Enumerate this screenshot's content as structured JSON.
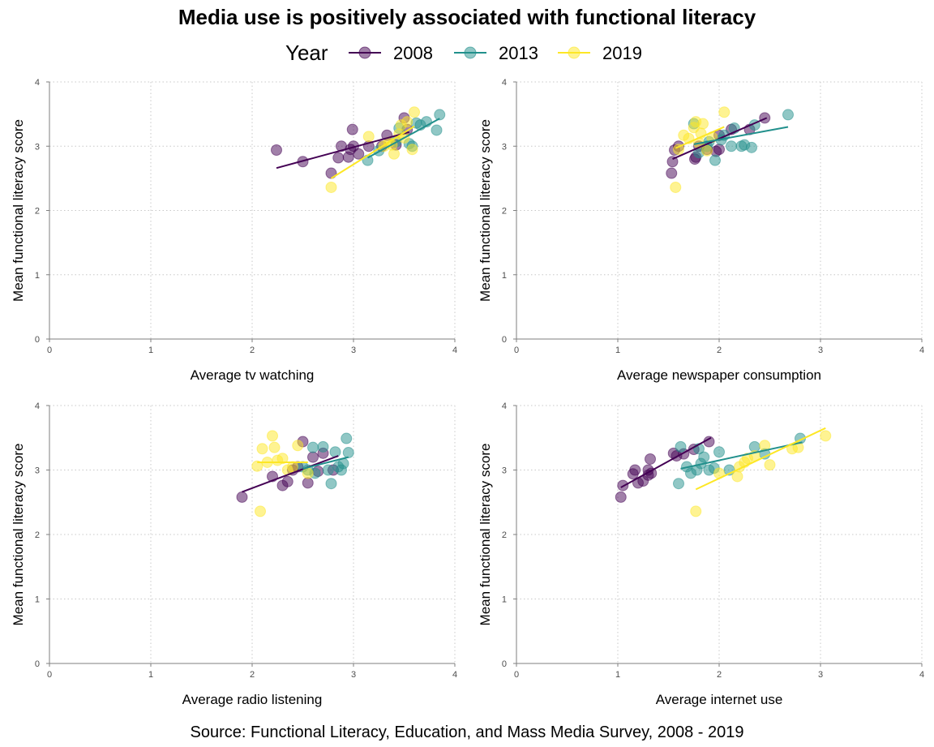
{
  "title": "Media use is positively associated with functional literacy",
  "caption": "Source: Functional Literacy, Education, and Mass Media Survey, 2008 - 2019",
  "legend": {
    "title": "Year",
    "items": [
      {
        "label": "2008",
        "color": "#440154"
      },
      {
        "label": "2013",
        "color": "#21908C"
      },
      {
        "label": "2019",
        "color": "#FDE725"
      }
    ]
  },
  "chart_data": [
    {
      "type": "scatter",
      "xlabel": "Average tv watching",
      "ylabel": "Mean functional literacy score",
      "xlim": [
        0,
        4
      ],
      "ylim": [
        0,
        4
      ],
      "xticks": [
        "0",
        "1",
        "2",
        "3",
        "4"
      ],
      "yticks": [
        "0",
        "1",
        "2",
        "3",
        "4"
      ],
      "grid": true,
      "series": [
        {
          "name": "2008",
          "color": "#440154",
          "points": [
            [
              2.24,
              2.94
            ],
            [
              2.5,
              2.76
            ],
            [
              2.78,
              2.58
            ],
            [
              2.85,
              2.82
            ],
            [
              2.88,
              3.0
            ],
            [
              2.95,
              2.83
            ],
            [
              2.97,
              2.95
            ],
            [
              2.99,
              3.26
            ],
            [
              3.0,
              3.0
            ],
            [
              3.05,
              2.88
            ],
            [
              3.15,
              3.0
            ],
            [
              3.28,
              3.0
            ],
            [
              3.33,
              3.17
            ],
            [
              3.42,
              3.02
            ],
            [
              3.5,
              3.44
            ],
            [
              3.53,
              3.26
            ]
          ],
          "fit": [
            [
              2.24,
              2.66
            ],
            [
              3.55,
              3.22
            ]
          ]
        },
        {
          "name": "2013",
          "color": "#21908C",
          "points": [
            [
              3.14,
              2.78
            ],
            [
              3.25,
              2.93
            ],
            [
              3.42,
              3.07
            ],
            [
              3.45,
              3.28
            ],
            [
              3.55,
              3.04
            ],
            [
              3.58,
              3.0
            ],
            [
              3.62,
              3.36
            ],
            [
              3.66,
              3.33
            ],
            [
              3.72,
              3.38
            ],
            [
              3.82,
              3.25
            ],
            [
              3.85,
              3.49
            ]
          ],
          "fit": [
            [
              3.14,
              2.82
            ],
            [
              3.85,
              3.43
            ]
          ]
        },
        {
          "name": "2019",
          "color": "#FDE725",
          "points": [
            [
              2.78,
              2.36
            ],
            [
              3.15,
              3.15
            ],
            [
              3.3,
              3.0
            ],
            [
              3.35,
              3.06
            ],
            [
              3.38,
              3.02
            ],
            [
              3.4,
              2.88
            ],
            [
              3.45,
              3.19
            ],
            [
              3.47,
              3.33
            ],
            [
              3.5,
              3.13
            ],
            [
              3.53,
              3.38
            ],
            [
              3.58,
              2.95
            ],
            [
              3.6,
              3.53
            ]
          ],
          "fit": [
            [
              2.78,
              2.5
            ],
            [
              3.6,
              3.31
            ]
          ]
        }
      ]
    },
    {
      "type": "scatter",
      "xlabel": "Average newspaper consumption",
      "ylabel": "Mean functional literacy score",
      "xlim": [
        0,
        4
      ],
      "ylim": [
        0,
        4
      ],
      "xticks": [
        "0",
        "1",
        "2",
        "3",
        "4"
      ],
      "yticks": [
        "0",
        "1",
        "2",
        "3",
        "4"
      ],
      "grid": true,
      "series": [
        {
          "name": "2008",
          "color": "#440154",
          "points": [
            [
              1.53,
              2.58
            ],
            [
              1.54,
              2.76
            ],
            [
              1.56,
              2.94
            ],
            [
              1.6,
              3.0
            ],
            [
              1.76,
              2.8
            ],
            [
              1.77,
              2.83
            ],
            [
              1.8,
              3.0
            ],
            [
              1.88,
              2.95
            ],
            [
              1.97,
              2.92
            ],
            [
              2.0,
              2.95
            ],
            [
              2.0,
              3.17
            ],
            [
              2.12,
              3.26
            ],
            [
              2.3,
              3.26
            ],
            [
              2.45,
              3.44
            ]
          ],
          "fit": [
            [
              1.54,
              2.8
            ],
            [
              2.47,
              3.44
            ]
          ]
        },
        {
          "name": "2013",
          "color": "#21908C",
          "points": [
            [
              1.75,
              3.35
            ],
            [
              1.8,
              2.9
            ],
            [
              1.88,
              3.0
            ],
            [
              1.9,
              3.07
            ],
            [
              1.96,
              2.78
            ],
            [
              2.02,
              3.1
            ],
            [
              2.05,
              3.17
            ],
            [
              2.12,
              3.0
            ],
            [
              2.15,
              3.28
            ],
            [
              2.22,
              3.0
            ],
            [
              2.25,
              3.02
            ],
            [
              2.32,
              2.98
            ],
            [
              2.35,
              3.33
            ],
            [
              2.68,
              3.49
            ]
          ],
          "fit": [
            [
              1.75,
              3.03
            ],
            [
              2.68,
              3.3
            ]
          ]
        },
        {
          "name": "2019",
          "color": "#FDE725",
          "points": [
            [
              1.57,
              2.36
            ],
            [
              1.6,
              2.95
            ],
            [
              1.65,
              3.17
            ],
            [
              1.7,
              3.12
            ],
            [
              1.75,
              3.29
            ],
            [
              1.77,
              3.38
            ],
            [
              1.8,
              3.05
            ],
            [
              1.82,
              3.2
            ],
            [
              1.84,
              3.35
            ],
            [
              1.88,
              2.93
            ],
            [
              1.93,
              3.14
            ],
            [
              2.05,
              3.53
            ]
          ],
          "fit": [
            [
              1.57,
              2.97
            ],
            [
              2.05,
              3.3
            ]
          ]
        }
      ]
    },
    {
      "type": "scatter",
      "xlabel": "Average radio listening",
      "ylabel": "Mean functional literacy score",
      "xlim": [
        0,
        4
      ],
      "ylim": [
        0,
        4
      ],
      "xticks": [
        "0",
        "1",
        "2",
        "3",
        "4"
      ],
      "yticks": [
        "0",
        "1",
        "2",
        "3",
        "4"
      ],
      "grid": true,
      "series": [
        {
          "name": "2008",
          "color": "#440154",
          "points": [
            [
              1.9,
              2.58
            ],
            [
              2.2,
              2.9
            ],
            [
              2.3,
              2.76
            ],
            [
              2.35,
              2.82
            ],
            [
              2.4,
              3.0
            ],
            [
              2.45,
              3.05
            ],
            [
              2.5,
              3.44
            ],
            [
              2.55,
              2.8
            ],
            [
              2.6,
              3.2
            ],
            [
              2.65,
              2.98
            ],
            [
              2.7,
              3.26
            ],
            [
              2.8,
              3.0
            ]
          ],
          "fit": [
            [
              1.9,
              2.66
            ],
            [
              2.85,
              3.22
            ]
          ]
        },
        {
          "name": "2013",
          "color": "#21908C",
          "points": [
            [
              2.5,
              3.05
            ],
            [
              2.55,
              3.0
            ],
            [
              2.6,
              3.35
            ],
            [
              2.62,
              2.95
            ],
            [
              2.7,
              3.36
            ],
            [
              2.75,
              3.0
            ],
            [
              2.78,
              2.79
            ],
            [
              2.82,
              3.28
            ],
            [
              2.85,
              3.05
            ],
            [
              2.88,
              3.0
            ],
            [
              2.9,
              3.1
            ],
            [
              2.93,
              3.49
            ],
            [
              2.95,
              3.27
            ]
          ],
          "fit": [
            [
              2.5,
              3.02
            ],
            [
              2.95,
              3.2
            ]
          ]
        },
        {
          "name": "2019",
          "color": "#FDE725",
          "points": [
            [
              2.05,
              3.06
            ],
            [
              2.08,
              2.36
            ],
            [
              2.1,
              3.33
            ],
            [
              2.15,
              3.12
            ],
            [
              2.2,
              3.53
            ],
            [
              2.22,
              3.35
            ],
            [
              2.25,
              3.15
            ],
            [
              2.3,
              3.18
            ],
            [
              2.35,
              3.0
            ],
            [
              2.4,
              3.05
            ],
            [
              2.45,
              3.38
            ],
            [
              2.55,
              2.95
            ]
          ],
          "fit": [
            [
              2.05,
              3.12
            ],
            [
              2.55,
              3.12
            ]
          ]
        }
      ]
    },
    {
      "type": "scatter",
      "xlabel": "Average internet use",
      "ylabel": "Mean functional literacy score",
      "xlim": [
        0,
        4
      ],
      "ylim": [
        0,
        4
      ],
      "xticks": [
        "0",
        "1",
        "2",
        "3",
        "4"
      ],
      "yticks": [
        "0",
        "1",
        "2",
        "3",
        "4"
      ],
      "grid": true,
      "series": [
        {
          "name": "2008",
          "color": "#440154",
          "points": [
            [
              1.03,
              2.58
            ],
            [
              1.05,
              2.76
            ],
            [
              1.15,
              2.94
            ],
            [
              1.17,
              3.0
            ],
            [
              1.2,
              2.8
            ],
            [
              1.25,
              2.83
            ],
            [
              1.3,
              2.92
            ],
            [
              1.3,
              3.0
            ],
            [
              1.32,
              3.17
            ],
            [
              1.33,
              2.95
            ],
            [
              1.55,
              3.26
            ],
            [
              1.58,
              3.22
            ],
            [
              1.65,
              3.25
            ],
            [
              1.75,
              3.32
            ],
            [
              1.9,
              3.44
            ]
          ],
          "fit": [
            [
              1.03,
              2.73
            ],
            [
              1.92,
              3.5
            ]
          ]
        },
        {
          "name": "2013",
          "color": "#21908C",
          "points": [
            [
              1.6,
              2.79
            ],
            [
              1.62,
              3.36
            ],
            [
              1.68,
              3.05
            ],
            [
              1.72,
              2.95
            ],
            [
              1.78,
              3.0
            ],
            [
              1.8,
              3.33
            ],
            [
              1.82,
              3.1
            ],
            [
              1.85,
              3.2
            ],
            [
              1.9,
              3.0
            ],
            [
              1.95,
              3.03
            ],
            [
              2.0,
              3.28
            ],
            [
              2.1,
              3.0
            ],
            [
              2.35,
              3.36
            ],
            [
              2.45,
              3.25
            ],
            [
              2.8,
              3.49
            ]
          ],
          "fit": [
            [
              1.62,
              3.02
            ],
            [
              2.82,
              3.43
            ]
          ]
        },
        {
          "name": "2019",
          "color": "#FDE725",
          "points": [
            [
              1.77,
              2.36
            ],
            [
              2.0,
              2.95
            ],
            [
              2.18,
              2.9
            ],
            [
              2.2,
              3.05
            ],
            [
              2.25,
              3.12
            ],
            [
              2.28,
              3.18
            ],
            [
              2.35,
              3.22
            ],
            [
              2.45,
              3.38
            ],
            [
              2.5,
              3.08
            ],
            [
              2.72,
              3.33
            ],
            [
              2.78,
              3.35
            ],
            [
              3.05,
              3.53
            ]
          ],
          "fit": [
            [
              1.77,
              2.7
            ],
            [
              3.05,
              3.65
            ]
          ]
        }
      ]
    }
  ]
}
